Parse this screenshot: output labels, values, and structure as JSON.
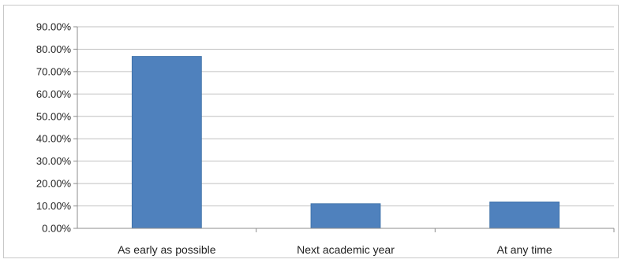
{
  "chart_data": {
    "type": "bar",
    "categories": [
      "As early as possible",
      "Next academic year",
      "At any time"
    ],
    "values": [
      76.8,
      11.0,
      11.8
    ],
    "ylim": [
      0,
      90
    ],
    "yticks": [
      0,
      10,
      20,
      30,
      40,
      50,
      60,
      70,
      80,
      90
    ],
    "ytick_labels": [
      "0.00%",
      "10.00%",
      "20.00%",
      "30.00%",
      "40.00%",
      "50.00%",
      "60.00%",
      "70.00%",
      "80.00%",
      "90.00%"
    ],
    "grid": true,
    "legend": "none",
    "bar_color": "#4f81bd",
    "bar_edge_color": "#3a6ea5",
    "grid_color": "#c0c0c0",
    "axis_color": "#8c8c8c"
  }
}
